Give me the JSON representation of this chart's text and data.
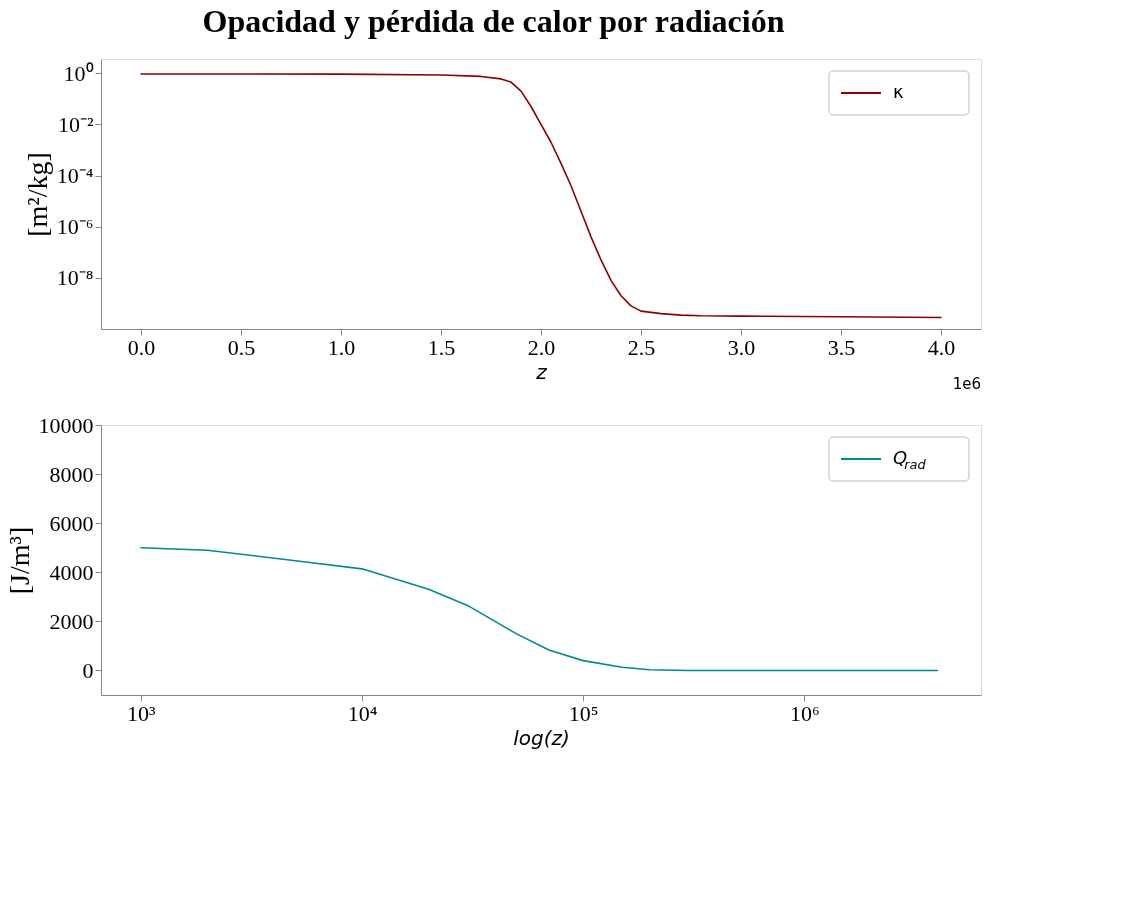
{
  "chart_data": [
    {
      "type": "line",
      "title": "Opacidad y pérdida de calor por radiación",
      "xlabel": "z",
      "ylabel": "[m²/kg]",
      "log": "y",
      "grid": false,
      "marker": "none",
      "line_style": "solid",
      "legend": "top right",
      "x": [
        0,
        0.5,
        1,
        1.5,
        1.7,
        1.8,
        1.85,
        1.9,
        1.95,
        2,
        2.05,
        2.1,
        2.15,
        2.2,
        2.25,
        2.3,
        2.35,
        2.4,
        2.45,
        2.5,
        2.6,
        2.7,
        2.8,
        3,
        3.5,
        4
      ],
      "series": [
        {
          "name": "κ",
          "color": "#8b0000",
          "values": [
            0.93,
            0.93,
            0.92,
            0.85,
            0.75,
            0.6,
            0.45,
            0.2,
            0.05,
            0.01,
            0.002,
            0.0003,
            4e-05,
            4e-06,
            4e-07,
            5e-08,
            8e-09,
            2e-09,
            8e-10,
            5e-10,
            4e-10,
            3.5e-10,
            3.3e-10,
            3.2e-10,
            3e-10,
            2.8e-10
          ]
        }
      ],
      "xlim": [
        -0.2,
        4.2
      ],
      "ylim": [
        1e-10,
        3.6
      ],
      "xticks": [
        {
          "value": 0,
          "label": "0.0"
        },
        0.5,
        {
          "value": 1,
          "label": "1.0"
        },
        1.5,
        {
          "value": 2,
          "label": "2.0"
        },
        2.5,
        {
          "value": 3,
          "label": "3.0"
        },
        3.5,
        {
          "value": 4,
          "label": "4.0"
        }
      ],
      "yticks": [
        {
          "value": 1,
          "label": "10⁰"
        },
        {
          "value": 0.01,
          "label": "10⁻²"
        },
        {
          "value": 0.0001,
          "label": "10⁻⁴"
        },
        {
          "value": 1e-06,
          "label": "10⁻⁶"
        },
        {
          "value": 1e-08,
          "label": "10⁻⁸"
        }
      ],
      "annotations": [
        "1e6"
      ]
    },
    {
      "type": "line",
      "xlabel": "log(z)",
      "ylabel": "[J/m³]",
      "log": "x",
      "grid": false,
      "marker": "none",
      "line_style": "solid",
      "legend": "top right",
      "x": [
        1000,
        2000,
        5000,
        10000,
        20000,
        30000,
        50000,
        70000,
        100000,
        150000,
        200000,
        300000,
        1000000,
        4000000
      ],
      "series": [
        {
          "name": "Q$_{rad}$",
          "color": "#008b8b",
          "values": [
            5000,
            4900,
            4470,
            4140,
            3310,
            2650,
            1490,
            830,
            400,
            130,
            30,
            0,
            0,
            0
          ]
        }
      ],
      "xlim": [
        660,
        6300000
      ],
      "ylim": [
        -1000,
        10000
      ],
      "xticks": [
        {
          "value": 1000,
          "label": "10³"
        },
        {
          "value": 10000,
          "label": "10⁴"
        },
        {
          "value": 100000,
          "label": "10⁵"
        },
        {
          "value": 1000000,
          "label": "10⁶"
        }
      ],
      "yticks": [
        0,
        2000,
        4000,
        6000,
        8000,
        10000
      ]
    }
  ]
}
